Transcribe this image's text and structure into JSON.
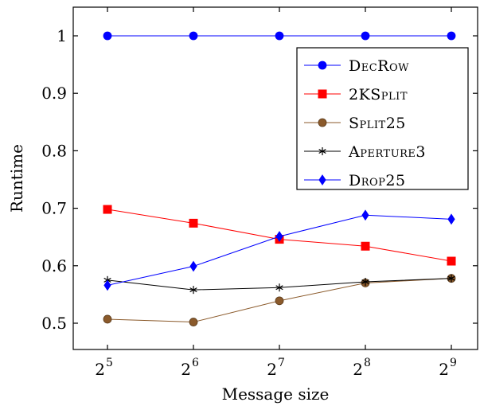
{
  "chart_data": {
    "type": "line",
    "x": [
      32,
      64,
      128,
      256,
      512
    ],
    "x_ticks": [
      {
        "base": "2",
        "exp": "5"
      },
      {
        "base": "2",
        "exp": "6"
      },
      {
        "base": "2",
        "exp": "7"
      },
      {
        "base": "2",
        "exp": "8"
      },
      {
        "base": "2",
        "exp": "9"
      }
    ],
    "x_scale": "log2",
    "y_ticks": [
      "0.5",
      "0.6",
      "0.7",
      "0.8",
      "0.9",
      "1"
    ],
    "ylim": [
      0.45,
      1.05
    ],
    "xlabel": "Message size",
    "ylabel": "Runtime",
    "grid": false,
    "legend_position": "top-right",
    "series": [
      {
        "name": "DecRow",
        "color": "#0000ff",
        "marker": "circle",
        "values": [
          1.0,
          1.0,
          1.0,
          1.0,
          1.0
        ]
      },
      {
        "name": "2KSplit",
        "color": "#ff0000",
        "marker": "square",
        "values": [
          0.698,
          0.674,
          0.646,
          0.634,
          0.608
        ]
      },
      {
        "name": "Split25",
        "color": "#8b5a2b",
        "marker": "circle",
        "values": [
          0.507,
          0.502,
          0.539,
          0.57,
          0.578
        ]
      },
      {
        "name": "Aperture3",
        "color": "#000000",
        "marker": "star",
        "values": [
          0.575,
          0.558,
          0.562,
          0.572,
          0.578
        ]
      },
      {
        "name": "Drop25",
        "color": "#0000ff",
        "marker": "diamond",
        "values": [
          0.566,
          0.599,
          0.651,
          0.688,
          0.681
        ]
      }
    ]
  }
}
